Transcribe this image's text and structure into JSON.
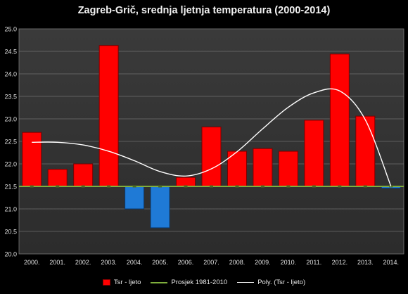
{
  "title": "Zagreb-Grič, srednja ljetnja temperatura (2000-2014)",
  "chart_data": {
    "type": "bar",
    "categories": [
      "2000.",
      "2001.",
      "2002.",
      "2003.",
      "2004.",
      "2005.",
      "2006.",
      "2007.",
      "2008.",
      "2009.",
      "2010.",
      "2011.",
      "2012.",
      "2013.",
      "2014."
    ],
    "values": [
      22.7,
      21.88,
      22.0,
      24.63,
      21.0,
      20.58,
      21.7,
      22.82,
      22.28,
      22.34,
      22.28,
      22.97,
      24.44,
      23.06,
      21.46
    ],
    "baseline": 21.5,
    "ylim": [
      20.0,
      25.0
    ],
    "yticks": [
      "20.0",
      "20.5",
      "21.0",
      "21.5",
      "22.0",
      "22.5",
      "23.0",
      "23.5",
      "24.0",
      "24.5",
      "25.0"
    ],
    "grid": true,
    "colors": {
      "above": "#ff0000",
      "below": "#1f7ad6",
      "average": "#7fae3c",
      "trend": "#ffffff"
    },
    "series": [
      {
        "name": "Tsr - ljeto"
      },
      {
        "name": "Prosjek 1981-2010",
        "value": 21.5
      },
      {
        "name": "Poly. (Tsr - ljeto)",
        "values": [
          22.48,
          22.48,
          22.42,
          22.28,
          22.07,
          21.83,
          21.73,
          21.89,
          22.27,
          22.78,
          23.26,
          23.58,
          23.62,
          22.98,
          21.5
        ]
      }
    ],
    "legend_position": "bottom"
  },
  "legend": {
    "bars": "Tsr - ljeto",
    "average": "Prosjek 1981-2010",
    "trend": "Poly. (Tsr - ljeto)"
  }
}
